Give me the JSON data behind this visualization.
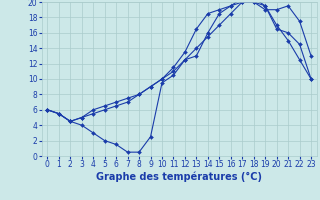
{
  "title": "Graphe des températures (°C)",
  "bg_color": "#cce8e8",
  "grid_color": "#aacccc",
  "line_color": "#1a3caa",
  "xlim": [
    -0.5,
    23.5
  ],
  "ylim": [
    0,
    20
  ],
  "xticks": [
    0,
    1,
    2,
    3,
    4,
    5,
    6,
    7,
    8,
    9,
    10,
    11,
    12,
    13,
    14,
    15,
    16,
    17,
    18,
    19,
    20,
    21,
    22,
    23
  ],
  "yticks": [
    0,
    2,
    4,
    6,
    8,
    10,
    12,
    14,
    16,
    18,
    20
  ],
  "line1_x": [
    0,
    1,
    2,
    3,
    4,
    5,
    6,
    7,
    8,
    9,
    10,
    11,
    12,
    13,
    14,
    15,
    16,
    17,
    18,
    19,
    20,
    21,
    22,
    23
  ],
  "line1_y": [
    6.0,
    5.5,
    4.5,
    4.0,
    3.0,
    2.0,
    1.5,
    0.5,
    0.5,
    2.5,
    9.5,
    10.5,
    12.5,
    13.0,
    16.0,
    18.5,
    19.5,
    20.0,
    20.0,
    19.5,
    17.0,
    15.0,
    12.5,
    10.0
  ],
  "line2_x": [
    0,
    1,
    2,
    3,
    4,
    5,
    6,
    7,
    8,
    9,
    10,
    11,
    12,
    13,
    14,
    15,
    16,
    17,
    18,
    19,
    20,
    21,
    22,
    23
  ],
  "line2_y": [
    6.0,
    5.5,
    4.5,
    5.0,
    5.5,
    6.0,
    6.5,
    7.0,
    8.0,
    9.0,
    10.0,
    11.0,
    12.5,
    14.0,
    15.5,
    17.0,
    18.5,
    20.0,
    20.0,
    19.0,
    19.0,
    19.5,
    17.5,
    13.0
  ],
  "line3_x": [
    0,
    1,
    2,
    3,
    4,
    5,
    6,
    7,
    8,
    9,
    10,
    11,
    12,
    13,
    14,
    15,
    16,
    17,
    18,
    19,
    20,
    21,
    22,
    23
  ],
  "line3_y": [
    6.0,
    5.5,
    4.5,
    5.0,
    6.0,
    6.5,
    7.0,
    7.5,
    8.0,
    9.0,
    10.0,
    11.5,
    13.5,
    16.5,
    18.5,
    19.0,
    19.5,
    20.5,
    20.5,
    19.5,
    16.5,
    16.0,
    14.5,
    10.0
  ],
  "xlabel_fontsize": 7.0,
  "tick_fontsize": 5.5,
  "linewidth": 0.8,
  "markersize": 2.0
}
